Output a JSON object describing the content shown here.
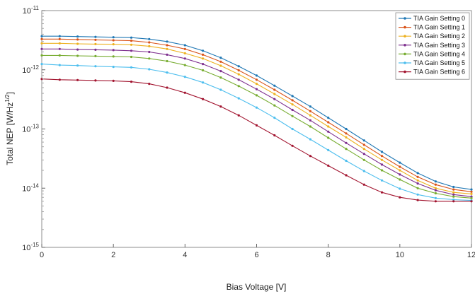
{
  "chart_data": {
    "type": "line",
    "title": "",
    "xlabel": "Bias Voltage [V]",
    "ylabel": "Total NEP [W/Hz",
    "ylabel_sup": "1/2",
    "ylabel_end": "]",
    "xlim": [
      0,
      12
    ],
    "ylim": [
      1e-15,
      1e-11
    ],
    "yscale": "log",
    "xticks": [
      "0",
      "2",
      "4",
      "6",
      "8",
      "10",
      "12"
    ],
    "yticks": [
      {
        "base": "10",
        "exp": "-11"
      },
      {
        "base": "10",
        "exp": "-12"
      },
      {
        "base": "10",
        "exp": "-13"
      },
      {
        "base": "10",
        "exp": "-14"
      },
      {
        "base": "10",
        "exp": "-15"
      }
    ],
    "grid": false,
    "legend_position": "top-right",
    "x": [
      0,
      0.5,
      1,
      1.5,
      2,
      2.5,
      3,
      3.5,
      4,
      4.5,
      5,
      5.5,
      6,
      6.5,
      7,
      7.5,
      8,
      8.5,
      9,
      9.5,
      10,
      10.5,
      11,
      11.5,
      12
    ],
    "series": [
      {
        "name": "TIA Gain Setting 0",
        "color": "#1f77b4",
        "values": [
          3.7e-12,
          3.7e-12,
          3.65e-12,
          3.6e-12,
          3.55e-12,
          3.5e-12,
          3.3e-12,
          3e-12,
          2.6e-12,
          2.1e-12,
          1.6e-12,
          1.15e-12,
          8e-13,
          5.4e-13,
          3.6e-13,
          2.4e-13,
          1.55e-13,
          1e-13,
          6.4e-14,
          4.1e-14,
          2.7e-14,
          1.8e-14,
          1.3e-14,
          1.05e-14,
          9.5e-15
        ]
      },
      {
        "name": "TIA Gain Setting 1",
        "color": "#d95319",
        "values": [
          3.3e-12,
          3.3e-12,
          3.25e-12,
          3.2e-12,
          3.15e-12,
          3.1e-12,
          2.9e-12,
          2.6e-12,
          2.25e-12,
          1.8e-12,
          1.37e-12,
          9.8e-13,
          6.8e-13,
          4.6e-13,
          3.05e-13,
          2e-13,
          1.3e-13,
          8.4e-14,
          5.4e-14,
          3.5e-14,
          2.3e-14,
          1.55e-14,
          1.15e-14,
          9.5e-15,
          8.7e-15
        ]
      },
      {
        "name": "TIA Gain Setting 2",
        "color": "#edb120",
        "values": [
          2.8e-12,
          2.8e-12,
          2.75e-12,
          2.72e-12,
          2.7e-12,
          2.65e-12,
          2.5e-12,
          2.25e-12,
          1.9e-12,
          1.55e-12,
          1.17e-12,
          8.4e-13,
          5.8e-13,
          3.9e-13,
          2.6e-13,
          1.7e-13,
          1.1e-13,
          7.2e-14,
          4.6e-14,
          3e-14,
          2e-14,
          1.35e-14,
          1e-14,
          8.5e-15,
          8e-15
        ]
      },
      {
        "name": "TIA Gain Setting 3",
        "color": "#7e2f8e",
        "values": [
          2.25e-12,
          2.25e-12,
          2.2e-12,
          2.18e-12,
          2.15e-12,
          2.1e-12,
          2e-12,
          1.8e-12,
          1.55e-12,
          1.25e-12,
          9.5e-13,
          6.8e-13,
          4.7e-13,
          3.2e-13,
          2.1e-13,
          1.4e-13,
          9e-14,
          5.8e-14,
          3.8e-14,
          2.5e-14,
          1.7e-14,
          1.2e-14,
          9.2e-15,
          7.8e-15,
          7.2e-15
        ]
      },
      {
        "name": "TIA Gain Setting 4",
        "color": "#77ac30",
        "values": [
          1.75e-12,
          1.75e-12,
          1.72e-12,
          1.7e-12,
          1.68e-12,
          1.65e-12,
          1.55e-12,
          1.4e-12,
          1.2e-12,
          9.8e-13,
          7.4e-13,
          5.3e-13,
          3.7e-13,
          2.5e-13,
          1.65e-13,
          1.1e-13,
          7.1e-14,
          4.6e-14,
          3e-14,
          2e-14,
          1.4e-14,
          1e-14,
          8.2e-15,
          7.2e-15,
          6.8e-15
        ]
      },
      {
        "name": "TIA Gain Setting 5",
        "color": "#4dbeee",
        "values": [
          1.25e-12,
          1.2e-12,
          1.18e-12,
          1.15e-12,
          1.12e-12,
          1.1e-12,
          1.02e-12,
          9e-13,
          7.6e-13,
          6.1e-13,
          4.6e-13,
          3.3e-13,
          2.3e-13,
          1.55e-13,
          1e-13,
          6.7e-14,
          4.4e-14,
          2.9e-14,
          1.95e-14,
          1.35e-14,
          9.8e-15,
          7.8e-15,
          6.8e-15,
          6.4e-15,
          6.2e-15
        ]
      },
      {
        "name": "TIA Gain Setting 6",
        "color": "#a2142f",
        "values": [
          7e-13,
          6.8e-13,
          6.7e-13,
          6.6e-13,
          6.5e-13,
          6.3e-13,
          5.8e-13,
          5e-13,
          4.1e-13,
          3.2e-13,
          2.4e-13,
          1.7e-13,
          1.15e-13,
          7.8e-14,
          5.2e-14,
          3.5e-14,
          2.4e-14,
          1.65e-14,
          1.15e-14,
          8.5e-15,
          7e-15,
          6.3e-15,
          6e-15,
          6e-15,
          6e-15
        ]
      }
    ]
  }
}
